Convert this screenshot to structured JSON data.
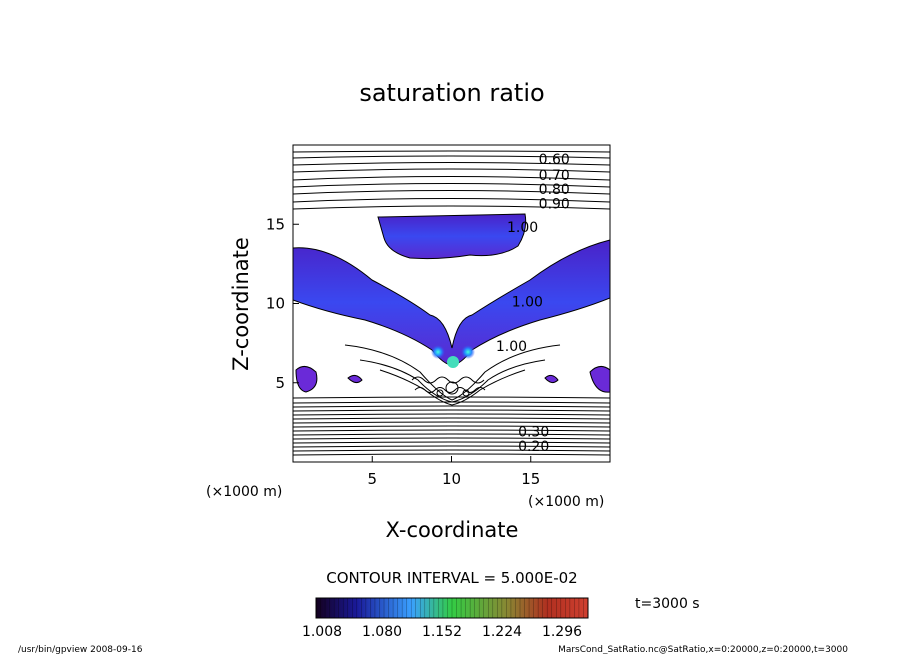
{
  "chart_data": {
    "type": "contour",
    "title": "saturation ratio",
    "xlabel": "X-coordinate",
    "ylabel": "Z-coordinate",
    "x_unit": "(×1000 m)",
    "z_unit": "(×1000 m)",
    "xlim": [
      0,
      20
    ],
    "ylim": [
      0,
      20
    ],
    "x_ticks": [
      5,
      10,
      15
    ],
    "y_ticks": [
      5,
      10,
      15
    ],
    "contour_labels": [
      {
        "text": "0.60",
        "x": 15.5,
        "z": 18.8
      },
      {
        "text": "0.70",
        "x": 15.5,
        "z": 17.8
      },
      {
        "text": "0.80",
        "x": 15.5,
        "z": 16.9
      },
      {
        "text": "0.90",
        "x": 15.5,
        "z": 16.0
      },
      {
        "text": "1.00",
        "x": 13.5,
        "z": 14.5
      },
      {
        "text": "1.00",
        "x": 13.8,
        "z": 9.8
      },
      {
        "text": "1.00",
        "x": 12.8,
        "z": 7.0
      },
      {
        "text": "0.30",
        "x": 14.2,
        "z": 1.6
      },
      {
        "text": "0.20",
        "x": 14.2,
        "z": 0.7
      }
    ],
    "shaded_range": [
      1.008,
      1.296
    ],
    "colorbar_labels": [
      "1.008",
      "1.080",
      "1.152",
      "1.224",
      "1.296"
    ],
    "contour_interval_text": "CONTOUR INTERVAL = 5.000E-02",
    "time_label": "t=3000 s",
    "colors": {
      "low": "#2a0a5e",
      "mid_low": "#3a55ff",
      "mid": "#33cc66",
      "high": "#cc3322",
      "super": "#7a28d8"
    }
  },
  "footer": {
    "left": "/usr/bin/gpview   2008-09-16",
    "right": "MarsCond_SatRatio.nc@SatRatio,x=0:20000,z=0:20000,t=3000"
  }
}
